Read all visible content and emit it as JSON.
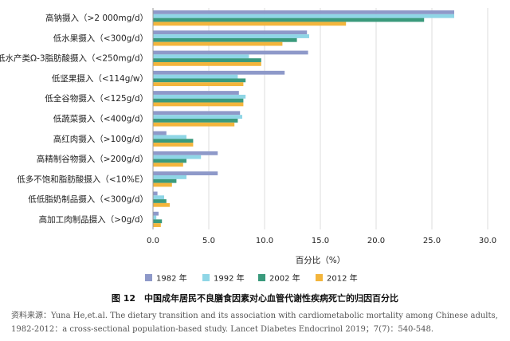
{
  "chart_data": {
    "type": "bar",
    "orientation": "horizontal",
    "categories": [
      "高钠摄入（>2 000mg/d）",
      "低水果摄入（<300g/d）",
      "低水产类Ω-3脂肪酸摄入（<250mg/d）",
      "低坚果摄入（<114g/w）",
      "低全谷物摄入（<125g/d）",
      "低蔬菜摄入（<400g/d）",
      "高红肉摄入（>100g/d）",
      "高精制谷物摄入（>200g/d）",
      "低多不饱和脂肪酸摄入（<10%E）",
      "低低脂奶制品摄入（<300g/d）",
      "高加工肉制品摄入（>0g/d）"
    ],
    "series": [
      {
        "name": "1982 年",
        "color": "#8e99c9",
        "values": [
          27.0,
          13.8,
          13.9,
          11.8,
          7.7,
          7.8,
          1.2,
          5.8,
          5.8,
          0.4,
          0.5
        ]
      },
      {
        "name": "1992 年",
        "color": "#8fd6e6",
        "values": [
          27.0,
          14.0,
          8.6,
          7.6,
          8.3,
          8.0,
          3.0,
          4.3,
          3.0,
          1.0,
          0.3
        ]
      },
      {
        "name": "2002 年",
        "color": "#3a9a7c",
        "values": [
          24.3,
          12.9,
          9.7,
          8.3,
          8.1,
          7.6,
          3.6,
          3.0,
          2.1,
          1.2,
          0.8
        ]
      },
      {
        "name": "2012 年",
        "color": "#f3b53c",
        "values": [
          17.3,
          11.6,
          9.7,
          8.1,
          8.1,
          7.3,
          3.6,
          2.7,
          1.7,
          1.5,
          0.7
        ]
      }
    ],
    "xlabel": "百分比（%）",
    "ylabel": "",
    "xlim": [
      0,
      30
    ],
    "xticks": [
      0,
      5,
      10,
      15,
      20,
      25,
      30
    ],
    "xtick_labels": [
      "0.0",
      "5.0",
      "10.0",
      "15.0",
      "20.0",
      "25.0",
      "30.0"
    ],
    "legend_position": "bottom",
    "grid": true
  },
  "caption": "图 12　中国成年居民不良膳食因素对心血管代谢性疾病死亡的归因百分比",
  "source": {
    "line1": "资料来源：Yuna He,et.al. The dietary transition and its association with cardiometabolic mortality among Chinese adults,",
    "line2": "1982-2012：a cross-sectional population-based study. Lancet Diabetes Endocrinol 2019；7(7)：540-548."
  }
}
